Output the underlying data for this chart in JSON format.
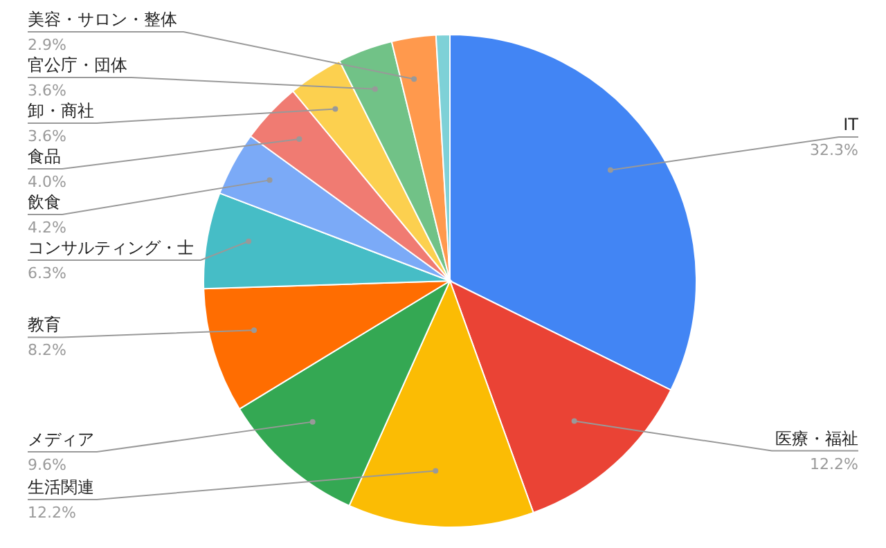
{
  "chart_data": {
    "type": "pie",
    "categories": [
      "IT",
      "医療・福祉",
      "生活関連",
      "メディア",
      "教育",
      "コンサルティング・士",
      "飲食",
      "食品",
      "卸・商社",
      "官公庁・団体",
      "美容・サロン・整体",
      null
    ],
    "values": [
      32.3,
      12.2,
      12.2,
      9.6,
      8.2,
      6.3,
      4.2,
      4.0,
      3.6,
      3.6,
      2.9,
      0.9
    ],
    "value_labels": [
      "32.3%",
      "12.2%",
      "12.2%",
      "9.6%",
      "8.2%",
      "6.3%",
      "4.2%",
      "4.0%",
      "3.6%",
      "3.6%",
      "2.9%",
      null
    ],
    "colors": [
      "#4285f4",
      "#ea4335",
      "#fbbc04",
      "#34a853",
      "#ff6d01",
      "#46bdc6",
      "#7baaf7",
      "#f07b72",
      "#fcd04f",
      "#71c287",
      "#ff994d",
      "#7ed1d7"
    ]
  }
}
